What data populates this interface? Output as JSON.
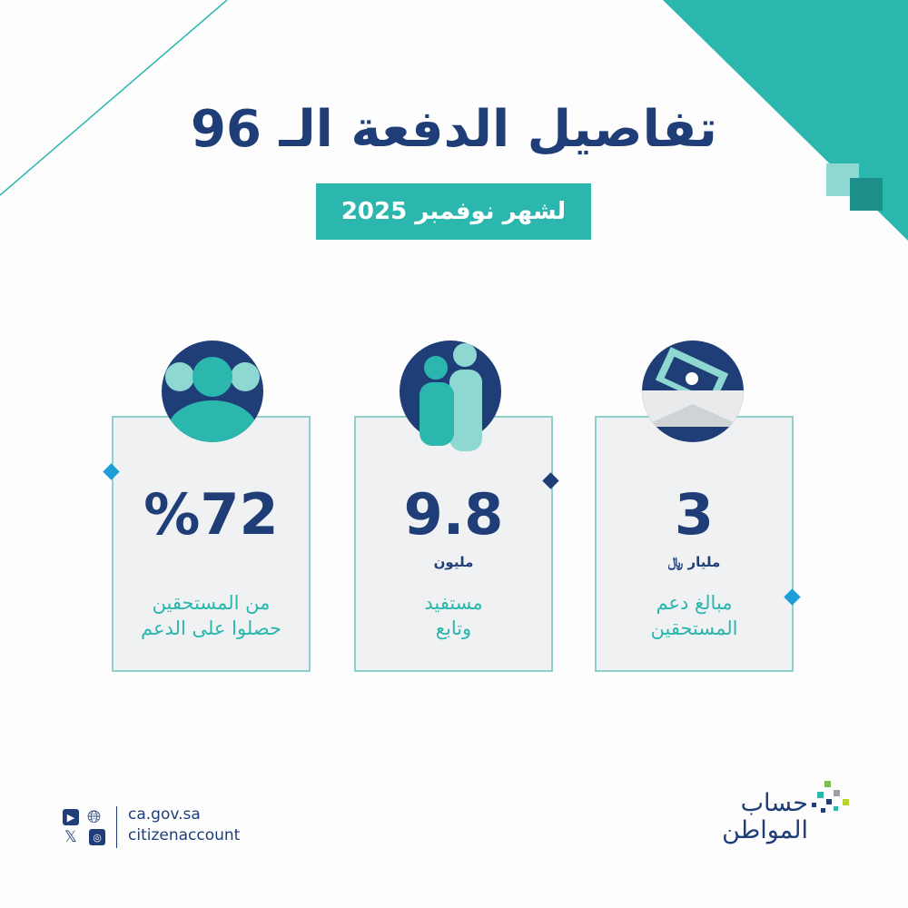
{
  "header": {
    "title": "تفاصيل الدفعة الـ 96",
    "subtitle": "لشهر نوفمبر 2025"
  },
  "cards": [
    {
      "value": "3",
      "unit": "مليار ﷼",
      "desc_line1": "مبالغ دعم",
      "desc_line2": "المستحقين",
      "icon": "money-envelope-icon"
    },
    {
      "value": "9.8",
      "unit": "مليون",
      "desc_line1": "مستفيد",
      "desc_line2": "وتابع",
      "icon": "people-icon"
    },
    {
      "value": "%72",
      "unit": "",
      "desc_line1": "من المستحقين",
      "desc_line2": "حصلوا على الدعم",
      "icon": "group-icon"
    }
  ],
  "footer": {
    "website": "ca.gov.sa",
    "handle": "citizenaccount",
    "logo_text_line1": "حساب",
    "logo_text_line2": "المواطن",
    "social": [
      "youtube-icon",
      "globe-icon",
      "x-icon",
      "instagram-icon"
    ]
  },
  "colors": {
    "navy": "#1f3e78",
    "teal": "#2bb7ae",
    "card_bg": "#f0f1f2",
    "accent_blue": "#1e9ed8"
  }
}
